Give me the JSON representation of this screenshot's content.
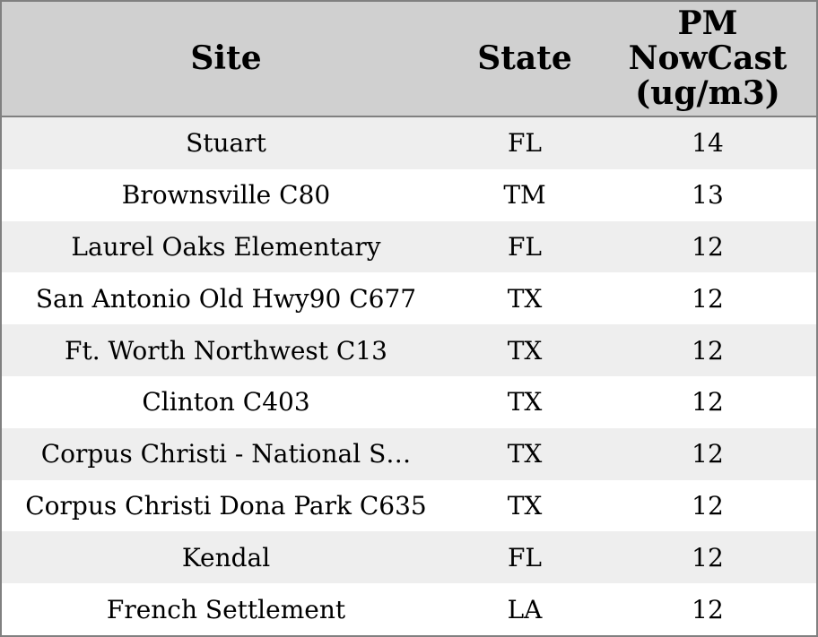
{
  "chart_data": {
    "type": "table",
    "columns": [
      "Site",
      "State",
      "PM NowCast (ug/m3)"
    ],
    "rows": [
      [
        "Stuart",
        "FL",
        14
      ],
      [
        "Brownsville C80",
        "TM",
        13
      ],
      [
        "Laurel Oaks Elementary",
        "FL",
        12
      ],
      [
        "San Antonio Old Hwy90 C677",
        "TX",
        12
      ],
      [
        "Ft. Worth Northwest C13",
        "TX",
        12
      ],
      [
        "Clinton C403",
        "TX",
        12
      ],
      [
        "Corpus Christi - National S…",
        "TX",
        12
      ],
      [
        "Corpus Christi Dona Park C635",
        "TX",
        12
      ],
      [
        "Kendal",
        "FL",
        12
      ],
      [
        "French Settlement",
        "LA",
        12
      ]
    ]
  },
  "header": {
    "site": "Site",
    "state": "State",
    "pm": "PM\nNowCast\n(ug/m3)"
  },
  "colors": {
    "border": "#808080",
    "header_bg": "#d0d0d0",
    "row_bg": "#ffffff",
    "row_alt_bg": "#eeeeee",
    "text": "#000000"
  }
}
